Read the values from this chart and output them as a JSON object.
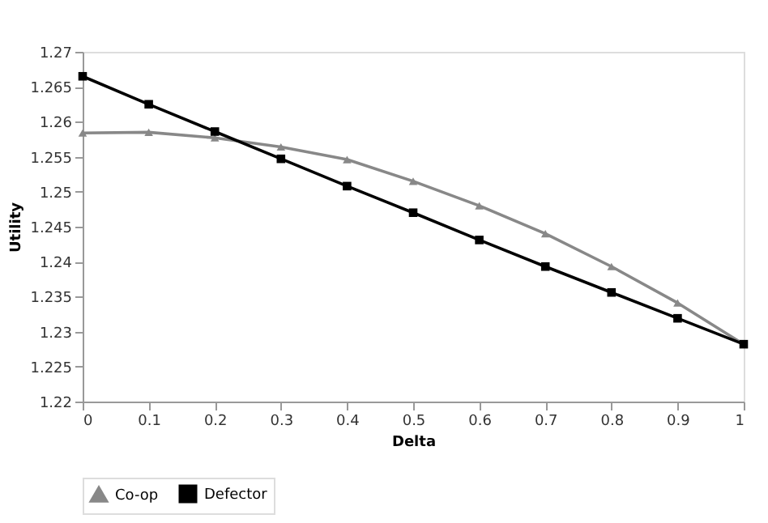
{
  "chart_data": {
    "type": "line",
    "xlabel": "Delta",
    "ylabel": "Utility",
    "x": [
      0,
      0.1,
      0.2,
      0.3,
      0.4,
      0.5,
      0.6,
      0.7,
      0.8,
      0.9,
      1
    ],
    "series": [
      {
        "name": "Co-op",
        "color": "#888888",
        "marker": "triangle",
        "values": [
          1.2584,
          1.2585,
          1.2577,
          1.2564,
          1.2546,
          1.2515,
          1.248,
          1.244,
          1.2393,
          1.2341,
          1.2282
        ]
      },
      {
        "name": "Defector",
        "color": "#000000",
        "marker": "square",
        "values": [
          1.2665,
          1.2625,
          1.2586,
          1.2547,
          1.2508,
          1.247,
          1.2431,
          1.2393,
          1.2356,
          1.2319,
          1.2282
        ]
      }
    ],
    "xlim": [
      0,
      1
    ],
    "xticks": [
      0,
      0.1,
      0.2,
      0.3,
      0.4,
      0.5,
      0.6,
      0.7,
      0.8,
      0.9,
      1
    ],
    "ylim": [
      1.22,
      1.27
    ],
    "yticks": [
      1.22,
      1.225,
      1.23,
      1.235,
      1.24,
      1.245,
      1.25,
      1.255,
      1.26,
      1.265,
      1.27
    ],
    "grid": false,
    "legend": "bottom",
    "line_style": "solid"
  }
}
